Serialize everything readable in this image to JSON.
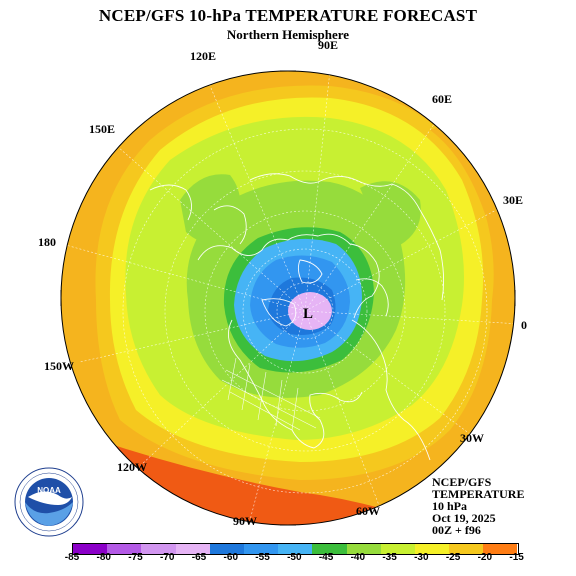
{
  "header": {
    "title": "NCEP/GFS 10-hPa TEMPERATURE FORECAST",
    "subtitle": "Northern Hemisphere"
  },
  "longitude_labels": {
    "l90e": "90E",
    "l120e": "120E",
    "l60e": "60E",
    "l150e": "150E",
    "l30e": "30E",
    "l180": "180",
    "l0": "0",
    "l150w": "150W",
    "l30w": "30W",
    "l120w": "120W",
    "l60w": "60W",
    "l90w": "90W"
  },
  "low_marker": "L",
  "info": {
    "line1": "NCEP/GFS",
    "line2": "TEMPERATURE",
    "line3": "10 hPa",
    "line4": "Oct 19, 2025",
    "line5": "00Z + f96"
  },
  "colorbar": {
    "ticks": [
      "-85",
      "-80",
      "-75",
      "-70",
      "-65",
      "-60",
      "-55",
      "-50",
      "-45",
      "-40",
      "-35",
      "-30",
      "-25",
      "-20",
      "-15"
    ],
    "colors": [
      "#8b00c8",
      "#b45ae6",
      "#d296f0",
      "#e6b4f5",
      "#1e78dc",
      "#3296f0",
      "#46b4f5",
      "#3cbe3c",
      "#96dc3c",
      "#c8f032",
      "#f5f028",
      "#f5c81e",
      "#ff7d14",
      "#ff3c0a",
      "#b4320a",
      "#8c6450",
      "#808080"
    ]
  },
  "map_colors": {
    "orange": "#f5b41e",
    "light_orange": "#f5c81e",
    "yellow": "#f5f028",
    "yellow_green": "#c8f032",
    "green": "#96dc3c",
    "dark_green": "#3cbe3c",
    "blue": "#3296f0",
    "light_blue": "#46b4f5",
    "deep_blue": "#1e78dc",
    "violet": "#e6b4f5",
    "red_orange": "#ff7d14",
    "red": "#f05a14"
  },
  "logo": {
    "text": "NOAA",
    "ring_text": "NATIONAL OCEANIC AND ATMOSPHERIC ADMINISTRATION • U.S. DEPARTMENT OF COMMERCE"
  }
}
